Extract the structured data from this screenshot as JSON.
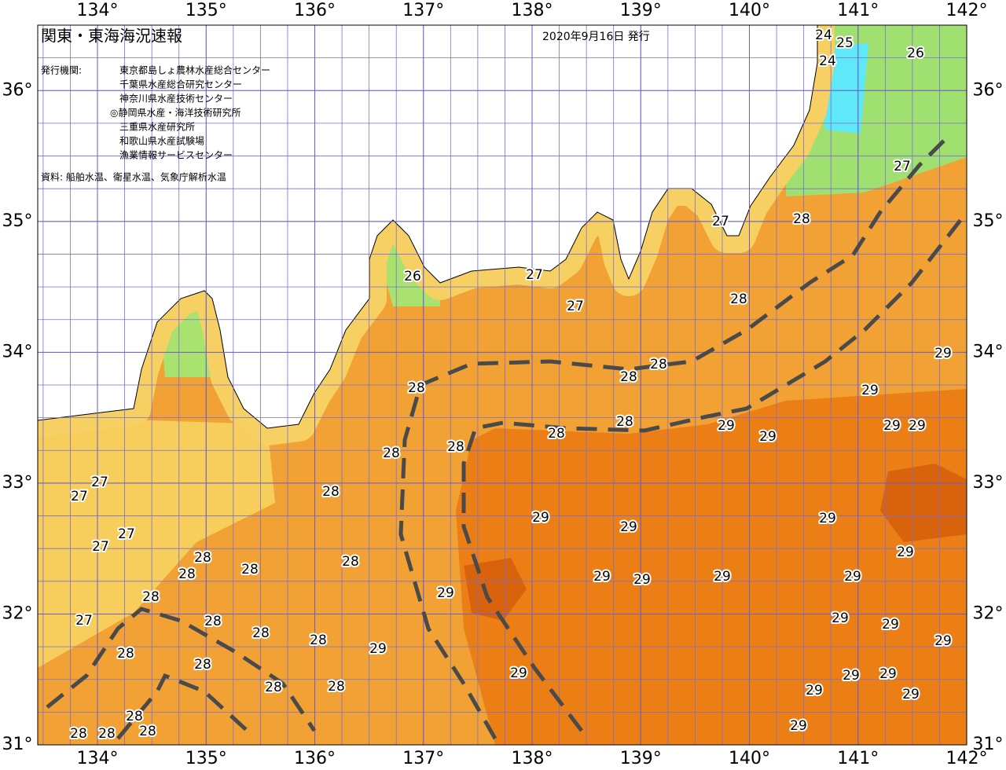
{
  "header": {
    "title": "関東・東海海況速報",
    "issue_date": "2020年9月16日 発行",
    "issuer_label": "発行機関:",
    "issuers": [
      "東京都島しょ農林水産総合センター",
      "千葉県水産総合研究センター",
      "神奈川県水産技術センター",
      "◎静岡県水産・海洋技術研究所",
      "三重県水産研究所",
      "和歌山県水産試験場",
      "漁業情報サービスセンター"
    ],
    "sources": "資料: 船舶水温、衛星水温、気象庁解析水温"
  },
  "map": {
    "xlim": [
      133.45,
      142
    ],
    "ylim": [
      31,
      36.5
    ],
    "lon_ticks": [
      {
        "value": 134,
        "label": "134°"
      },
      {
        "value": 135,
        "label": "135°"
      },
      {
        "value": 136,
        "label": "136°"
      },
      {
        "value": 137,
        "label": "137°"
      },
      {
        "value": 138,
        "label": "138°"
      },
      {
        "value": 139,
        "label": "139°"
      },
      {
        "value": 140,
        "label": "140°"
      },
      {
        "value": 141,
        "label": "141°"
      },
      {
        "value": 142,
        "label": "142°"
      }
    ],
    "lat_ticks": [
      {
        "value": 31,
        "label": "31°"
      },
      {
        "value": 32,
        "label": "32°"
      },
      {
        "value": 33,
        "label": "33°"
      },
      {
        "value": 34,
        "label": "34°"
      },
      {
        "value": 35,
        "label": "35°"
      },
      {
        "value": 36,
        "label": "36°"
      }
    ],
    "contour_labels": [
      24,
      25,
      24,
      26,
      27,
      28,
      27,
      26,
      27,
      27,
      28,
      28,
      28,
      28,
      29,
      29,
      29,
      29,
      28,
      28,
      29,
      29,
      28,
      28,
      27,
      27,
      28,
      29,
      29,
      29,
      27,
      27,
      29,
      28,
      28,
      28,
      28,
      29,
      29,
      29,
      29,
      29,
      28,
      27,
      28,
      28,
      28,
      29,
      29,
      29,
      29,
      28,
      28,
      29,
      29,
      29,
      28,
      28,
      29,
      29,
      28,
      28,
      28,
      28,
      29
    ]
  }
}
